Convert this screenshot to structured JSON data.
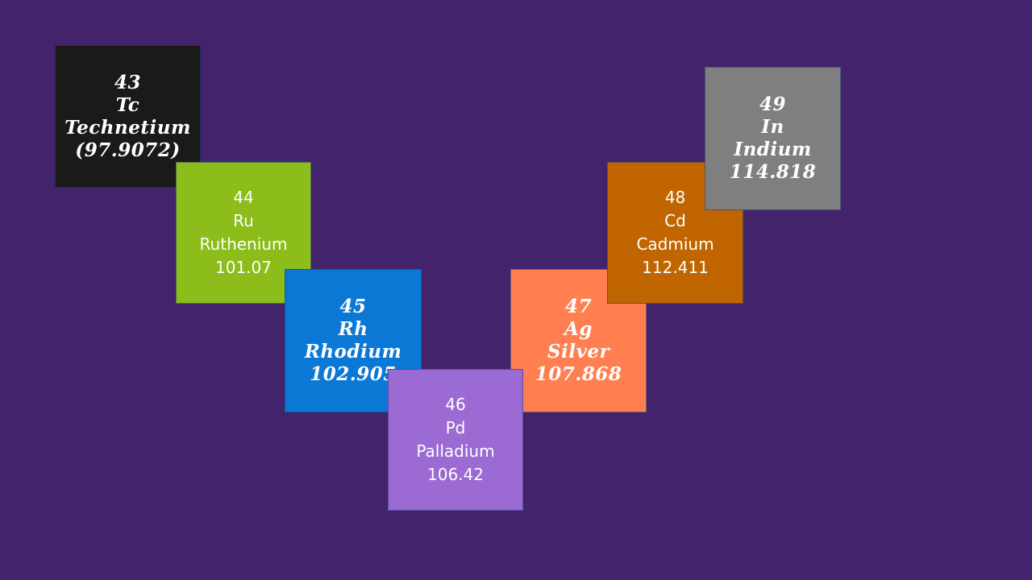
{
  "elements": [
    {
      "number": "43",
      "symbol": "Tc",
      "name": "Technetium",
      "mass": "(97.9072)",
      "color": "#1a1a1a"
    },
    {
      "number": "44",
      "symbol": "Ru",
      "name": "Ruthenium",
      "mass": "101.07",
      "color": "#8cbd1a"
    },
    {
      "number": "45",
      "symbol": "Rh",
      "name": "Rhodium",
      "mass": "102.905",
      "color": "#0b78d6"
    },
    {
      "number": "46",
      "symbol": "Pd",
      "name": "Palladium",
      "mass": "106.42",
      "color": "#9b6ad2"
    },
    {
      "number": "47",
      "symbol": "Ag",
      "name": "Silver",
      "mass": "107.868",
      "color": "#ff7f50"
    },
    {
      "number": "48",
      "symbol": "Cd",
      "name": "Cadmium",
      "mass": "112.411",
      "color": "#c06500"
    },
    {
      "number": "49",
      "symbol": "In",
      "name": "Indium",
      "mass": "114.818",
      "color": "#7f7f7f"
    }
  ]
}
